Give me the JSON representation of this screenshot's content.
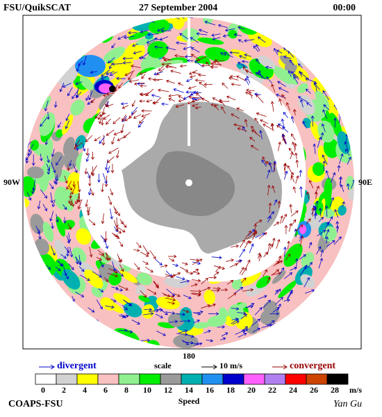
{
  "header": {
    "source": "FSU/QuikSCAT",
    "date": "27 September 2004",
    "time": "00:00"
  },
  "map": {
    "left_label": "90W",
    "right_label": "90E",
    "bottom_label": "180"
  },
  "legend": {
    "divergent": "divergent",
    "scale": "scale",
    "scale_value": "10 m/s",
    "convergent": "convergent"
  },
  "colorbar": {
    "ticks": [
      0,
      2,
      4,
      6,
      8,
      10,
      12,
      14,
      16,
      18,
      20,
      22,
      24,
      26,
      28
    ],
    "colors": [
      "#ffffff",
      "#d2d2d2",
      "#ffff00",
      "#f8c0c0",
      "#90f090",
      "#00ee00",
      "#9a9a9a",
      "#00b0b0",
      "#2090f0",
      "#0000cc",
      "#ff60ff",
      "#b080f0",
      "#ff0000",
      "#cc4400",
      "#000000"
    ],
    "unit": "m/s",
    "label": "Speed"
  },
  "footer": {
    "institution": "COAPS-FSU",
    "author": "Yan Gu"
  }
}
